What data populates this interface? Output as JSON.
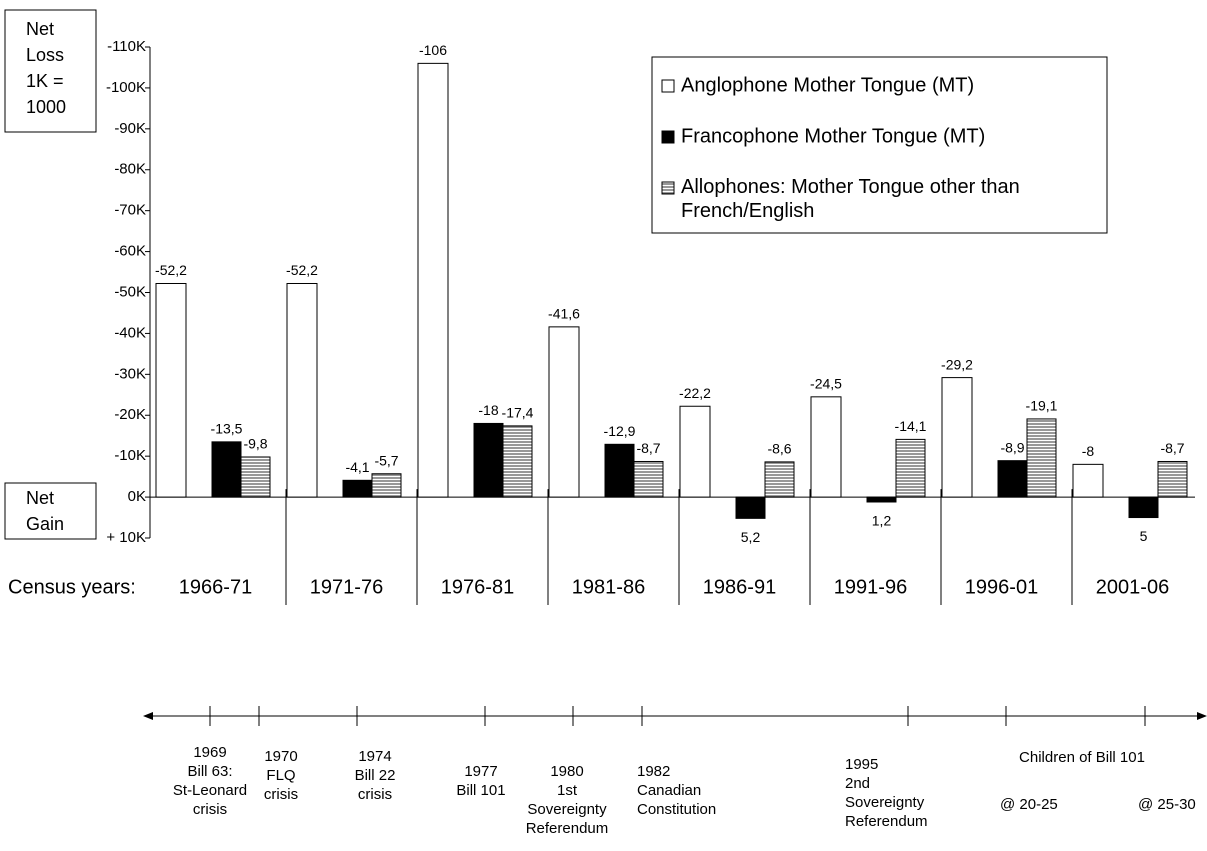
{
  "chart_data": {
    "type": "bar",
    "y_axis_label_top": [
      "Net",
      "Loss",
      "1K =",
      "1000"
    ],
    "y_axis_label_bottom": [
      "Net",
      "Gain"
    ],
    "x_axis_label": "Census years:",
    "categories": [
      "1966-71",
      "1971-76",
      "1976-81",
      "1981-86",
      "1986-91",
      "1991-96",
      "1996-01",
      "2001-06"
    ],
    "series": [
      {
        "name": "Anglophone Mother Tongue (MT)",
        "color": "#ffffff",
        "values": [
          -52.2,
          -52.2,
          -106,
          -41.6,
          -22.2,
          -24.5,
          -29.2,
          -8
        ],
        "value_labels": [
          "-52,2",
          "-52,2",
          "-106",
          "-41,6",
          "-22,2",
          "-24,5",
          "-29,2",
          "-8"
        ]
      },
      {
        "name": "Francophone Mother Tongue (MT)",
        "color": "#000000",
        "values": [
          -13.5,
          -4.1,
          -18,
          -12.9,
          5.2,
          1.2,
          -8.9,
          5
        ],
        "value_labels": [
          "-13,5",
          "-4,1",
          "-18",
          "-12,9",
          "5,2",
          "1,2",
          "-8,9",
          "5"
        ]
      },
      {
        "name": "Allophones: Mother Tongue other than French/English",
        "color": "#555555",
        "hatch": "horizontal",
        "values": [
          -9.8,
          -5.7,
          -17.4,
          -8.7,
          -8.6,
          -14.1,
          -19.1,
          -8.7
        ],
        "value_labels": [
          "-9,8",
          "-5,7",
          "-17,4",
          "-8,7",
          "-8,6",
          "-14,1",
          "-19,1",
          "-8,7"
        ]
      }
    ],
    "ylim": [
      10,
      -110
    ],
    "yticks": [
      {
        "value": -110,
        "label": "-110K"
      },
      {
        "value": -100,
        "label": "-100K"
      },
      {
        "value": -90,
        "label": "-90K"
      },
      {
        "value": -80,
        "label": "-80K"
      },
      {
        "value": -70,
        "label": "-70K"
      },
      {
        "value": -60,
        "label": "-60K"
      },
      {
        "value": -50,
        "label": "-50K"
      },
      {
        "value": -40,
        "label": "-40K"
      },
      {
        "value": -30,
        "label": "-30K"
      },
      {
        "value": -20,
        "label": "-20K"
      },
      {
        "value": -10,
        "label": "-10K"
      },
      {
        "value": 0,
        "label": "0K"
      },
      {
        "value": 10,
        "label": "+ 10K"
      }
    ],
    "legend_position": "upper right",
    "timeline": {
      "events": [
        {
          "lines": [
            "1969",
            "Bill 63:",
            "St-Leonard",
            "crisis"
          ]
        },
        {
          "lines": [
            "1970",
            "FLQ",
            "crisis"
          ]
        },
        {
          "lines": [
            "1974",
            "Bill 22",
            "crisis"
          ]
        },
        {
          "lines": [
            "1977",
            "Bill 101"
          ]
        },
        {
          "lines": [
            "1980",
            "1st",
            "Sovereignty",
            "Referendum"
          ]
        },
        {
          "lines": [
            "1982",
            "Canadian",
            "Constitution"
          ]
        },
        {
          "lines": [
            "1995",
            "2nd",
            "Sovereignty",
            "Referendum"
          ]
        },
        {
          "lines": [
            "@ 20-25"
          ]
        },
        {
          "lines": [
            "@ 25-30"
          ]
        }
      ],
      "group_label": "Children of Bill 101"
    }
  }
}
